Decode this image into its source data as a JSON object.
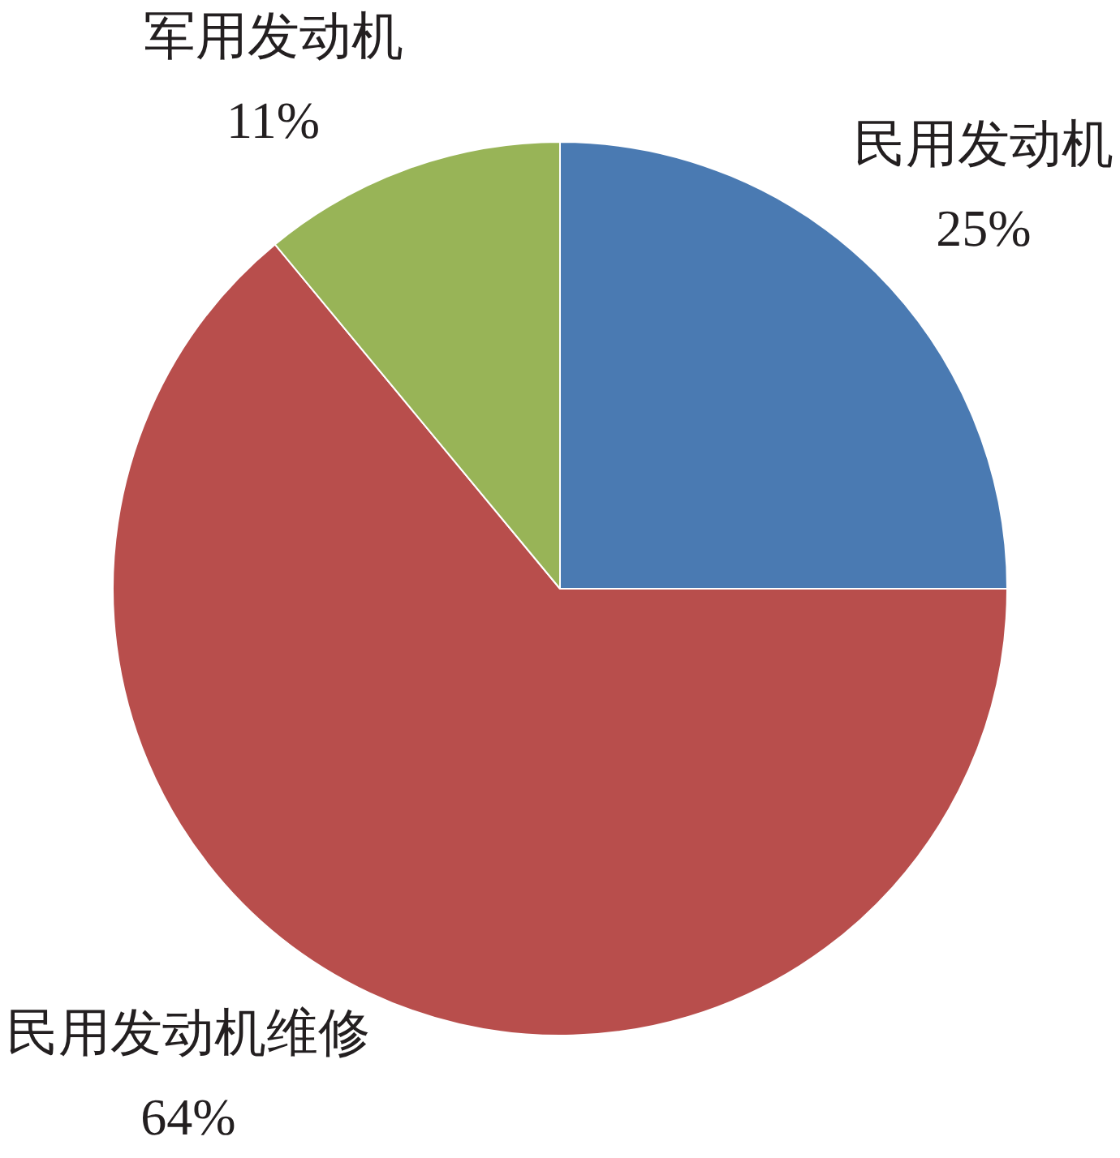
{
  "chart_data": {
    "type": "pie",
    "categories": [
      "民用发动机",
      "民用发动机维修",
      "军用发动机"
    ],
    "values": [
      25,
      64,
      11
    ],
    "value_labels": [
      "25%",
      "64%",
      "11%"
    ],
    "colors": [
      "#4a7ab2",
      "#b84e4c",
      "#98b457"
    ]
  }
}
